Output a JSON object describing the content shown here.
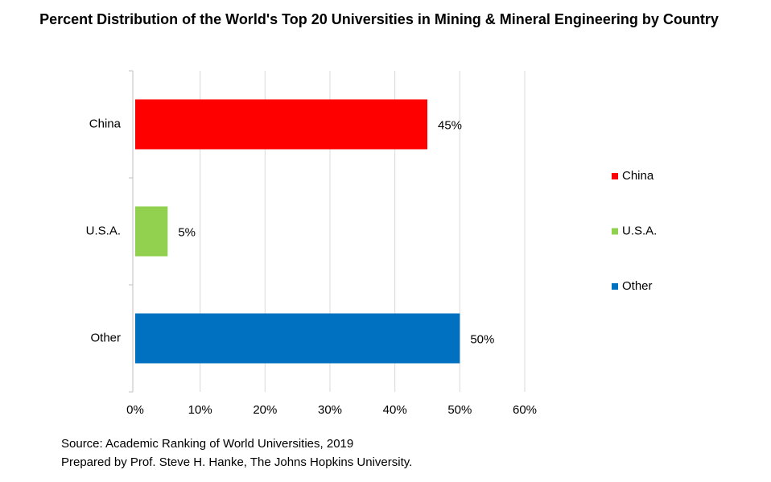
{
  "chart_data": {
    "type": "hbar",
    "title": "Percent Distribution of the World's Top 20 Universities in Mining & Mineral Engineering by Country",
    "categories": [
      "China",
      "U.S.A.",
      "Other"
    ],
    "values": [
      45,
      5,
      50
    ],
    "value_labels": [
      "45%",
      "5%",
      "50%"
    ],
    "colors": [
      "#ff0000",
      "#92d050",
      "#0070c0"
    ],
    "xlim": [
      0,
      60
    ],
    "xticks": [
      {
        "value": 0,
        "label": "0%"
      },
      {
        "value": 10,
        "label": "10%"
      },
      {
        "value": 20,
        "label": "20%"
      },
      {
        "value": 30,
        "label": "30%"
      },
      {
        "value": 40,
        "label": "40%"
      },
      {
        "value": 50,
        "label": "50%"
      },
      {
        "value": 60,
        "label": "60%"
      }
    ],
    "grid": true,
    "legend": "right",
    "source": "Source: Academic Ranking of World Universities, 2019",
    "credit": "Prepared by Prof. Steve H. Hanke, The Johns Hopkins University."
  }
}
